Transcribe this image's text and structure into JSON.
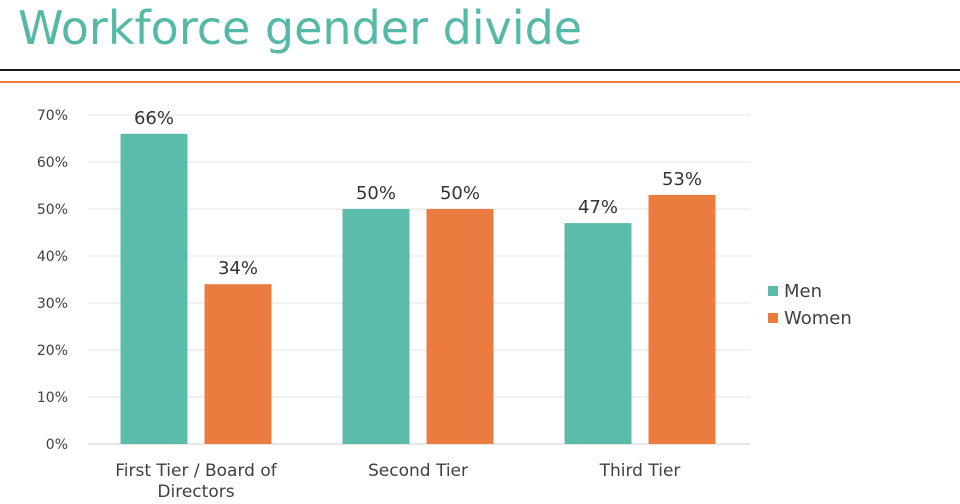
{
  "title": "Workforce gender divide",
  "colors": {
    "men": "#5bbcab",
    "women": "#ec7b40",
    "title": "#55b9a8"
  },
  "chart_data": {
    "type": "bar",
    "categories": [
      "First Tier / Board of Directors",
      "Second Tier",
      "Third Tier"
    ],
    "category_lines": [
      [
        "First Tier / Board of",
        "Directors"
      ],
      [
        "Second Tier"
      ],
      [
        "Third Tier"
      ]
    ],
    "series": [
      {
        "name": "Men",
        "values": [
          66,
          50,
          47
        ],
        "labels": [
          "66%",
          "50%",
          "47%"
        ],
        "color": "#5bbcab"
      },
      {
        "name": "Women",
        "values": [
          34,
          50,
          53
        ],
        "labels": [
          "34%",
          "50%",
          "53%"
        ],
        "color": "#ec7b40"
      }
    ],
    "ylim": [
      0,
      70
    ],
    "yticks": [
      "0%",
      "10%",
      "20%",
      "30%",
      "40%",
      "50%",
      "60%",
      "70%"
    ],
    "xlabel": "",
    "ylabel": "",
    "grid": true,
    "legend": "right"
  }
}
